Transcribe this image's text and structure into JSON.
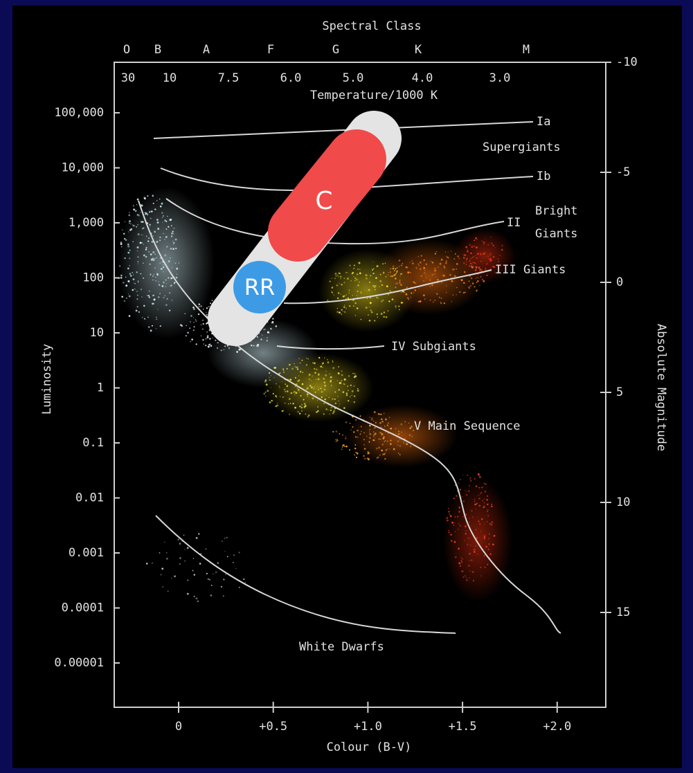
{
  "header": {
    "spectral_title": "Spectral Class",
    "spectral_classes": [
      "O",
      "B",
      "A",
      "F",
      "G",
      "K",
      "M"
    ],
    "temperatures": [
      "30",
      "10",
      "7.5",
      "6.0",
      "5.0",
      "4.0",
      "3.0"
    ],
    "temperature_title": "Temperature/1000 K"
  },
  "left_axis": {
    "title": "Luminosity",
    "ticks": [
      "100,000",
      "10,000",
      "1,000",
      "100",
      "10",
      "1",
      "0.1",
      "0.01",
      "0.001",
      "0.0001",
      "0.00001"
    ]
  },
  "right_axis": {
    "title": "Absolute Magnitude",
    "ticks": [
      "-10",
      "-5",
      "0",
      "5",
      "10",
      "15"
    ]
  },
  "bottom_axis": {
    "title": "Colour (B-V)",
    "ticks": [
      "0",
      "+0.5",
      "+1.0",
      "+1.5",
      "+2.0"
    ]
  },
  "annotations": {
    "ia": "Ia",
    "supergiants": "Supergiants",
    "ib": "Ib",
    "bright": "Bright",
    "giants_ii": "Giants",
    "ii": "II",
    "iii": "III  Giants",
    "iv": "IV Subgiants",
    "v": "V Main Sequence",
    "white_dwarfs": "White Dwarfs"
  },
  "overlay": {
    "cepheid": "C",
    "rr_lyrae": "RR"
  }
}
